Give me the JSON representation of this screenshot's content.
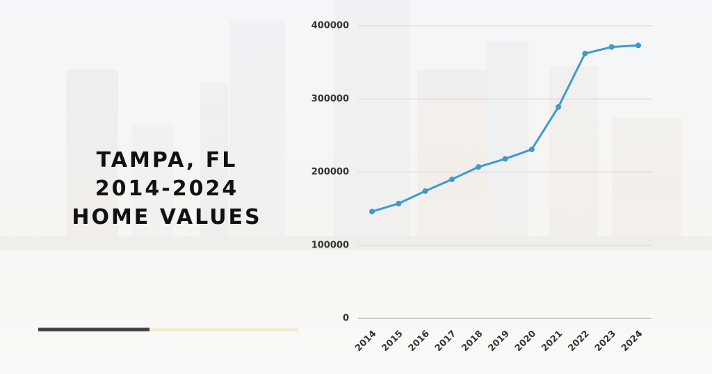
{
  "chart_data": {
    "type": "line",
    "title": [
      "TAMPA, FL",
      "2014-2024",
      "HOME VALUES"
    ],
    "categories": [
      "2014",
      "2015",
      "2016",
      "2017",
      "2018",
      "2019",
      "2020",
      "2021",
      "2022",
      "2023",
      "2024"
    ],
    "values": [
      146000,
      157000,
      174000,
      190000,
      207000,
      218000,
      231000,
      289000,
      362000,
      371000,
      373000
    ],
    "color": "#3a9bd0",
    "ylim": [
      0,
      400000
    ],
    "yticks": [
      0,
      100000,
      200000,
      300000,
      400000
    ],
    "grid": true
  }
}
